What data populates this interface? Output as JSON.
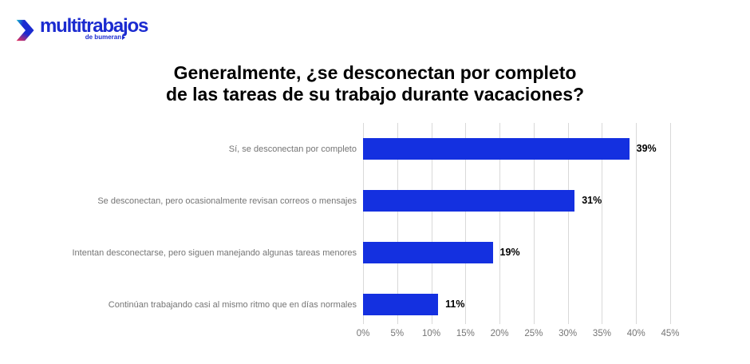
{
  "logo": {
    "brand": "multitrabajos",
    "subtitle": "de bumeran"
  },
  "title": {
    "line1": "Generalmente, ¿se desconectan por completo",
    "line2": "de las tareas de su trabajo durante vacaciones?"
  },
  "colors": {
    "bar_blue": "#1430e0",
    "logo_blue": "#1b2bd0",
    "logo_teal": "#15c3cf",
    "logo_pink": "#e0315f",
    "label_gray": "#757575",
    "gridline_gray": "#d9d9d9",
    "title_black": "#000000"
  },
  "chart_data": {
    "type": "bar",
    "orientation": "horizontal",
    "title": "Generalmente, ¿se desconectan por completo de las tareas de su trabajo durante vacaciones?",
    "categories": [
      "Sí, se desconectan por completo",
      "Se desconectan, pero ocasionalmente revisan correos o mensajes",
      "Intentan desconectarse, pero siguen manejando algunas tareas menores",
      "Continúan trabajando casi al mismo ritmo que en días normales"
    ],
    "values": [
      39,
      31,
      19,
      11
    ],
    "value_labels": [
      "39%",
      "31%",
      "19%",
      "11%"
    ],
    "xlabel": "",
    "ylabel": "",
    "xlim": [
      0,
      45
    ],
    "xtick_step": 5,
    "xticks": [
      "0%",
      "5%",
      "10%",
      "15%",
      "20%",
      "25%",
      "30%",
      "35%",
      "40%",
      "45%"
    ],
    "grid": "vertical",
    "legend": false
  }
}
